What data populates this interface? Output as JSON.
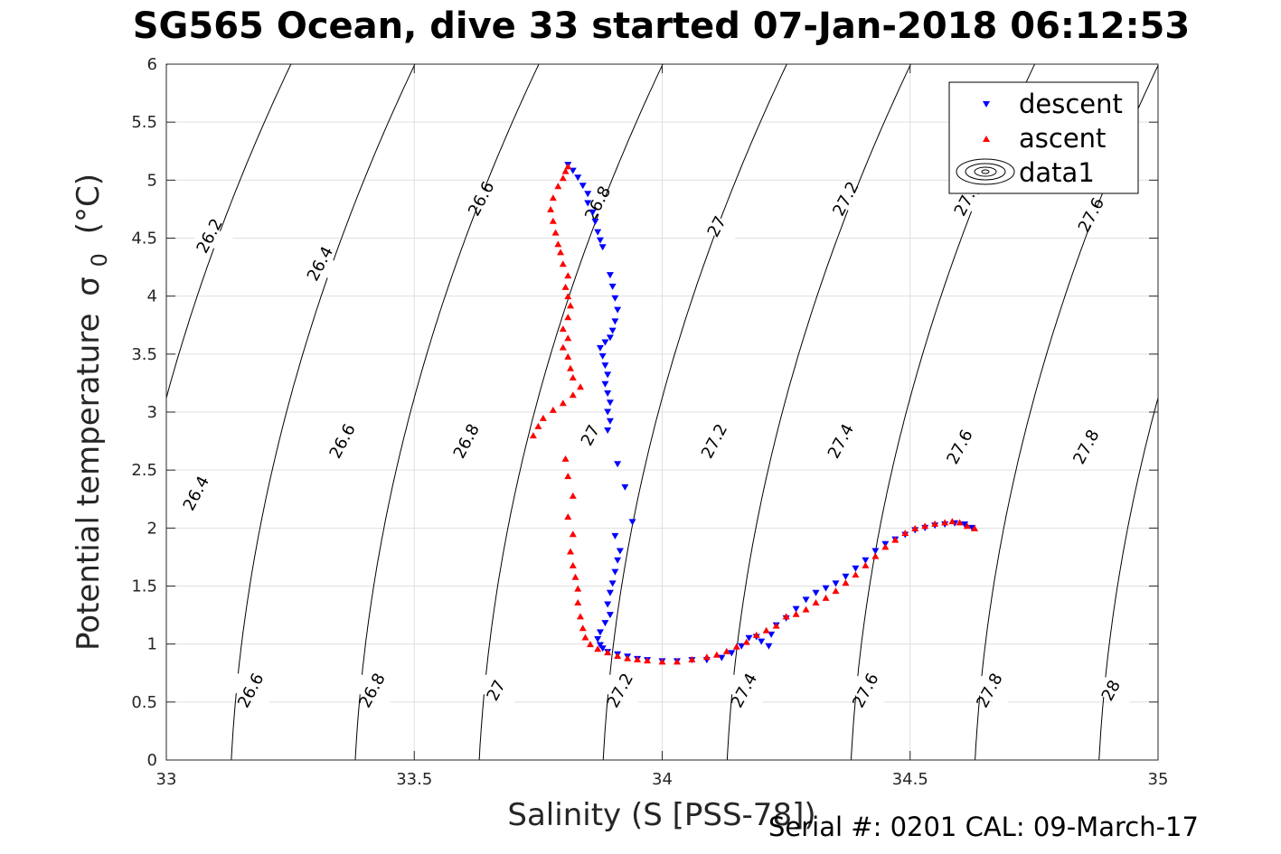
{
  "chart_data": {
    "type": "scatter",
    "title": "SG565 Ocean, dive 33 started 07-Jan-2018 06:12:53",
    "xlabel": "Salinity (S [PSS-78])",
    "ylabel": "Potential temperature",
    "ylabel_symbol": "σ",
    "ylabel_subscript": "0",
    "ylabel_unit": "(°C)",
    "xlim": [
      33,
      35
    ],
    "ylim": [
      0,
      6
    ],
    "x_ticks": [
      33,
      33.5,
      34,
      34.5,
      35
    ],
    "x_tick_labels": [
      "33",
      "33.5",
      "34",
      "34.5",
      "35"
    ],
    "y_ticks": [
      0,
      0.5,
      1,
      1.5,
      2,
      2.5,
      3,
      3.5,
      4,
      4.5,
      5,
      5.5,
      6
    ],
    "y_tick_labels": [
      "0",
      "0.5",
      "1",
      "1.5",
      "2",
      "2.5",
      "3",
      "3.5",
      "4",
      "4.5",
      "5",
      "5.5",
      "6"
    ],
    "grid": true,
    "legend_position": "top-right",
    "legend": [
      "descent",
      "ascent",
      "data1"
    ],
    "colors": {
      "descent": "#0000ff",
      "ascent": "#ff0000",
      "contour": "#000000",
      "grid": "#dfdfdf"
    },
    "contours": {
      "name": "data1",
      "levels": [
        26.2,
        26.4,
        26.6,
        26.8,
        27,
        27.2,
        27.4,
        27.6,
        27.8,
        28
      ],
      "labels": [
        {
          "text": "26.2",
          "s": 33.087,
          "t": 4.52
        },
        {
          "text": "26.4",
          "s": 33.31,
          "t": 4.28
        },
        {
          "text": "26.6",
          "s": 33.635,
          "t": 4.84
        },
        {
          "text": "26.8",
          "s": 33.87,
          "t": 4.8
        },
        {
          "text": "27",
          "s": 34.11,
          "t": 4.6
        },
        {
          "text": "27.2",
          "s": 34.37,
          "t": 4.84
        },
        {
          "text": "27.4",
          "s": 34.615,
          "t": 4.84
        },
        {
          "text": "27.6",
          "s": 34.865,
          "t": 4.7
        },
        {
          "text": "26.4",
          "s": 33.06,
          "t": 2.3
        },
        {
          "text": "26.6",
          "s": 33.355,
          "t": 2.75
        },
        {
          "text": "26.8",
          "s": 33.605,
          "t": 2.75
        },
        {
          "text": "27",
          "s": 33.855,
          "t": 2.8
        },
        {
          "text": "27.2",
          "s": 34.105,
          "t": 2.75
        },
        {
          "text": "27.4",
          "s": 34.36,
          "t": 2.75
        },
        {
          "text": "27.6",
          "s": 34.6,
          "t": 2.7
        },
        {
          "text": "27.8",
          "s": 34.855,
          "t": 2.7
        },
        {
          "text": "26.6",
          "s": 33.17,
          "t": 0.6
        },
        {
          "text": "26.8",
          "s": 33.415,
          "t": 0.6
        },
        {
          "text": "27",
          "s": 33.665,
          "t": 0.6
        },
        {
          "text": "27.2",
          "s": 33.915,
          "t": 0.6
        },
        {
          "text": "27.4",
          "s": 34.165,
          "t": 0.6
        },
        {
          "text": "27.6",
          "s": 34.41,
          "t": 0.6
        },
        {
          "text": "27.8",
          "s": 34.66,
          "t": 0.6
        },
        {
          "text": "28",
          "s": 34.905,
          "t": 0.6
        }
      ]
    },
    "series": [
      {
        "name": "descent",
        "marker": "triangle-down",
        "points": [
          [
            33.81,
            5.13
          ],
          [
            33.82,
            5.08
          ],
          [
            33.83,
            5.02
          ],
          [
            33.84,
            4.95
          ],
          [
            33.85,
            4.88
          ],
          [
            33.85,
            4.8
          ],
          [
            33.86,
            4.72
          ],
          [
            33.865,
            4.64
          ],
          [
            33.87,
            4.55
          ],
          [
            33.875,
            4.48
          ],
          [
            33.88,
            4.42
          ],
          [
            33.895,
            4.18
          ],
          [
            33.9,
            4.08
          ],
          [
            33.905,
            3.98
          ],
          [
            33.91,
            3.88
          ],
          [
            33.905,
            3.78
          ],
          [
            33.9,
            3.7
          ],
          [
            33.895,
            3.64
          ],
          [
            33.885,
            3.6
          ],
          [
            33.875,
            3.55
          ],
          [
            33.88,
            3.48
          ],
          [
            33.885,
            3.4
          ],
          [
            33.89,
            3.32
          ],
          [
            33.885,
            3.24
          ],
          [
            33.89,
            3.16
          ],
          [
            33.895,
            3.08
          ],
          [
            33.89,
            3.0
          ],
          [
            33.895,
            2.92
          ],
          [
            33.89,
            2.84
          ],
          [
            33.91,
            2.55
          ],
          [
            33.925,
            2.35
          ],
          [
            33.94,
            2.05
          ],
          [
            33.905,
            1.93
          ],
          [
            33.915,
            1.8
          ],
          [
            33.91,
            1.72
          ],
          [
            33.905,
            1.62
          ],
          [
            33.9,
            1.52
          ],
          [
            33.895,
            1.44
          ],
          [
            33.89,
            1.34
          ],
          [
            33.895,
            1.25
          ],
          [
            33.885,
            1.18
          ],
          [
            33.875,
            1.1
          ],
          [
            33.87,
            1.04
          ],
          [
            33.875,
            0.99
          ],
          [
            33.88,
            0.96
          ],
          [
            33.89,
            0.93
          ],
          [
            33.91,
            0.91
          ],
          [
            33.93,
            0.89
          ],
          [
            33.95,
            0.87
          ],
          [
            33.97,
            0.86
          ],
          [
            34.0,
            0.85
          ],
          [
            34.03,
            0.85
          ],
          [
            34.06,
            0.86
          ],
          [
            34.09,
            0.86
          ],
          [
            34.12,
            0.88
          ],
          [
            34.14,
            0.92
          ],
          [
            34.16,
            0.98
          ],
          [
            34.175,
            1.05
          ],
          [
            34.19,
            1.06
          ],
          [
            34.2,
            1.02
          ],
          [
            34.215,
            0.98
          ],
          [
            34.22,
            1.08
          ],
          [
            34.23,
            1.16
          ],
          [
            34.25,
            1.22
          ],
          [
            34.27,
            1.3
          ],
          [
            34.29,
            1.38
          ],
          [
            34.31,
            1.44
          ],
          [
            34.33,
            1.48
          ],
          [
            34.35,
            1.52
          ],
          [
            34.37,
            1.58
          ],
          [
            34.39,
            1.65
          ],
          [
            34.41,
            1.72
          ],
          [
            34.43,
            1.8
          ],
          [
            34.45,
            1.86
          ],
          [
            34.47,
            1.9
          ],
          [
            34.49,
            1.94
          ],
          [
            34.51,
            1.98
          ],
          [
            34.53,
            2.0
          ],
          [
            34.55,
            2.02
          ],
          [
            34.57,
            2.03
          ],
          [
            34.59,
            2.04
          ],
          [
            34.61,
            2.03
          ],
          [
            34.625,
            2.0
          ]
        ]
      },
      {
        "name": "ascent",
        "marker": "triangle-up",
        "points": [
          [
            34.63,
            2.0
          ],
          [
            34.615,
            2.02
          ],
          [
            34.6,
            2.05
          ],
          [
            34.585,
            2.06
          ],
          [
            34.57,
            2.05
          ],
          [
            34.55,
            2.04
          ],
          [
            34.53,
            2.02
          ],
          [
            34.51,
            2.0
          ],
          [
            34.49,
            1.96
          ],
          [
            34.47,
            1.9
          ],
          [
            34.45,
            1.84
          ],
          [
            34.43,
            1.76
          ],
          [
            34.41,
            1.68
          ],
          [
            34.39,
            1.6
          ],
          [
            34.37,
            1.53
          ],
          [
            34.35,
            1.46
          ],
          [
            34.33,
            1.4
          ],
          [
            34.31,
            1.36
          ],
          [
            34.29,
            1.3
          ],
          [
            34.27,
            1.26
          ],
          [
            34.25,
            1.24
          ],
          [
            34.23,
            1.16
          ],
          [
            34.21,
            1.12
          ],
          [
            34.19,
            1.08
          ],
          [
            34.17,
            1.02
          ],
          [
            34.15,
            0.98
          ],
          [
            34.13,
            0.94
          ],
          [
            34.11,
            0.91
          ],
          [
            34.09,
            0.89
          ],
          [
            34.06,
            0.87
          ],
          [
            34.03,
            0.85
          ],
          [
            34.0,
            0.85
          ],
          [
            33.97,
            0.86
          ],
          [
            33.95,
            0.87
          ],
          [
            33.93,
            0.88
          ],
          [
            33.91,
            0.9
          ],
          [
            33.89,
            0.93
          ],
          [
            33.87,
            0.96
          ],
          [
            33.855,
            1.0
          ],
          [
            33.845,
            1.06
          ],
          [
            33.84,
            1.14
          ],
          [
            33.835,
            1.24
          ],
          [
            33.83,
            1.36
          ],
          [
            33.83,
            1.48
          ],
          [
            33.825,
            1.58
          ],
          [
            33.82,
            1.68
          ],
          [
            33.815,
            1.8
          ],
          [
            33.82,
            1.95
          ],
          [
            33.81,
            2.1
          ],
          [
            33.82,
            2.28
          ],
          [
            33.81,
            2.45
          ],
          [
            33.805,
            2.6
          ],
          [
            33.74,
            2.8
          ],
          [
            33.75,
            2.88
          ],
          [
            33.76,
            2.95
          ],
          [
            33.78,
            3.02
          ],
          [
            33.8,
            3.08
          ],
          [
            33.82,
            3.15
          ],
          [
            33.835,
            3.22
          ],
          [
            33.82,
            3.3
          ],
          [
            33.815,
            3.38
          ],
          [
            33.81,
            3.48
          ],
          [
            33.8,
            3.56
          ],
          [
            33.81,
            3.64
          ],
          [
            33.8,
            3.72
          ],
          [
            33.81,
            3.82
          ],
          [
            33.815,
            3.92
          ],
          [
            33.81,
            4.0
          ],
          [
            33.805,
            4.08
          ],
          [
            33.81,
            4.18
          ],
          [
            33.8,
            4.28
          ],
          [
            33.795,
            4.38
          ],
          [
            33.79,
            4.45
          ],
          [
            33.785,
            4.55
          ],
          [
            33.78,
            4.65
          ],
          [
            33.775,
            4.75
          ],
          [
            33.78,
            4.85
          ],
          [
            33.79,
            4.95
          ],
          [
            33.8,
            5.02
          ],
          [
            33.805,
            5.08
          ],
          [
            33.81,
            5.12
          ]
        ]
      }
    ]
  },
  "footer": "Serial #: 0201  CAL: 09-March-17"
}
